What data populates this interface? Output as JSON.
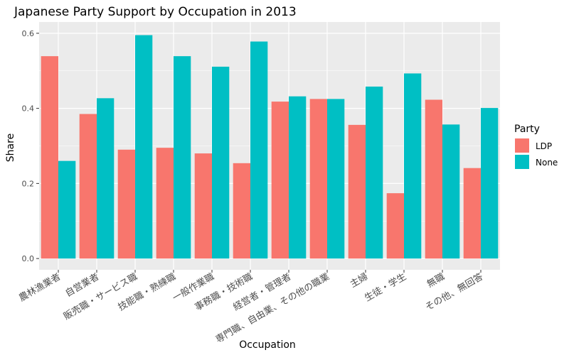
{
  "chart_data": {
    "type": "bar",
    "title": "Japanese Party Support by Occupation in 2013",
    "xlabel": "Occupation",
    "ylabel": "Share",
    "ylim": [
      -0.03,
      0.63
    ],
    "yticks": [
      "0.0",
      "0.2",
      "0.4",
      "0.6"
    ],
    "ytick_values": [
      0.0,
      0.2,
      0.4,
      0.6
    ],
    "grid": true,
    "legend_position": "right",
    "legend_title": "Party",
    "categories": [
      "農林漁業者",
      "自営業者",
      "販売職・サービス職",
      "技能職・熟練職",
      "一般作業職",
      "事務職・技術職",
      "経営者・管理者",
      "専門職、自由業、その他の職業",
      "主婦",
      "生徒・学生",
      "無職",
      "その他、無回答"
    ],
    "series": [
      {
        "name": "LDP",
        "color": "#F8766D",
        "values": [
          0.539,
          0.385,
          0.29,
          0.295,
          0.28,
          0.254,
          0.418,
          0.425,
          0.356,
          0.174,
          0.423,
          0.241
        ]
      },
      {
        "name": "None",
        "color": "#00BFC4",
        "values": [
          0.26,
          0.427,
          0.595,
          0.539,
          0.511,
          0.578,
          0.432,
          0.425,
          0.458,
          0.493,
          0.357,
          0.401
        ]
      }
    ]
  }
}
